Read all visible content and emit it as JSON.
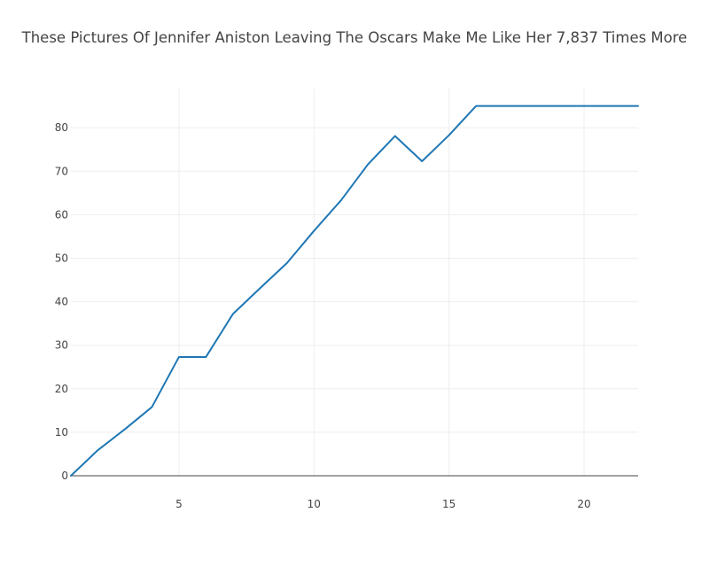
{
  "chart_data": {
    "type": "line",
    "title": "These Pictures Of Jennifer Aniston Leaving The Oscars Make Me Like Her 7,837 Times More",
    "xlabel": "",
    "ylabel": "",
    "xlim": [
      1,
      22
    ],
    "ylim": [
      0,
      89
    ],
    "x_ticks": [
      5,
      10,
      15,
      20
    ],
    "y_ticks": [
      0,
      10,
      20,
      30,
      40,
      50,
      60,
      70,
      80
    ],
    "grid": true,
    "legend": "none",
    "series": [
      {
        "x": [
          1,
          2,
          3,
          4,
          5,
          6,
          7,
          8,
          9,
          10,
          11,
          12,
          13,
          14,
          15,
          16,
          17,
          18,
          19,
          20,
          21,
          22
        ],
        "values": [
          0,
          5.9,
          10.7,
          15.8,
          27.3,
          27.3,
          37.2,
          43.1,
          48.9,
          56.3,
          63.3,
          71.6,
          78.1,
          72.3,
          78.3,
          85,
          85,
          85,
          85,
          85,
          85,
          85
        ],
        "color": "#1f77b4"
      }
    ],
    "colors": {
      "line": "#1f77b4",
      "grid": "#eeeeee",
      "zero_line": "#444444",
      "text": "#444444"
    }
  }
}
